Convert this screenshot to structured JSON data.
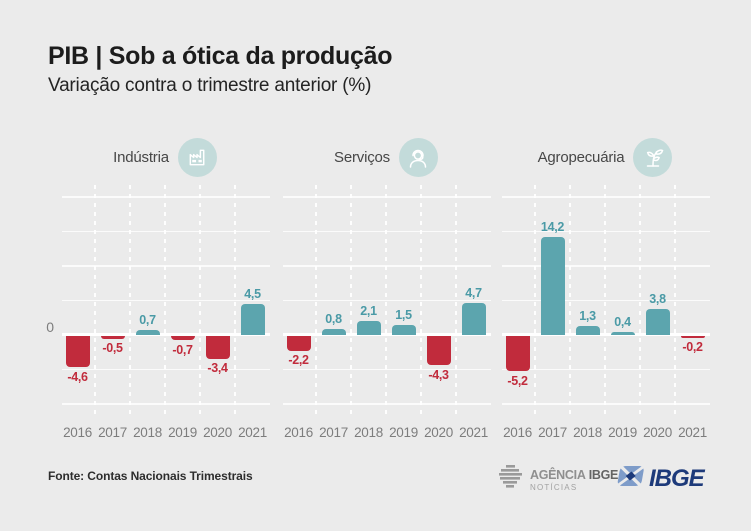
{
  "header": {
    "title": "PIB | Sob a ótica da produção",
    "subtitle": "Variação contra o trimestre anterior (%)"
  },
  "axis": {
    "zero_label": "0"
  },
  "colors": {
    "background": "#ebebeb",
    "positive_bar": "#5ca5ae",
    "negative_bar": "#c12b3c",
    "positive_label": "#4a9aa6",
    "negative_label": "#c12b3c",
    "icon_circle": "#c3dbda",
    "ibge_navy": "#1d3a7a",
    "ibge_lightblue": "#7e9cc9"
  },
  "chart_data": [
    {
      "type": "bar",
      "title": "Indústria",
      "slug": "industria",
      "icon": "factory-icon",
      "categories": [
        "2016",
        "2017",
        "2018",
        "2019",
        "2020",
        "2021"
      ],
      "values": [
        -4.6,
        -0.5,
        0.7,
        -0.7,
        -3.4,
        4.5
      ],
      "labels": [
        "-4,6",
        "-0,5",
        "0,7",
        "-0,7",
        "-3,4",
        "4,5"
      ],
      "ylim": [
        -12,
        21.5
      ],
      "gridline_step": 5,
      "grid": "on",
      "legend": "none"
    },
    {
      "type": "bar",
      "title": "Serviços",
      "slug": "servicos",
      "icon": "headset-person-icon",
      "categories": [
        "2016",
        "2017",
        "2018",
        "2019",
        "2020",
        "2021"
      ],
      "values": [
        -2.2,
        0.8,
        2.1,
        1.5,
        -4.3,
        4.7
      ],
      "labels": [
        "-2,2",
        "0,8",
        "2,1",
        "1,5",
        "-4,3",
        "4,7"
      ],
      "ylim": [
        -12,
        21.5
      ],
      "gridline_step": 5,
      "grid": "on",
      "legend": "none"
    },
    {
      "type": "bar",
      "title": "Agropecuária",
      "slug": "agropecuaria",
      "icon": "plant-icon",
      "categories": [
        "2016",
        "2017",
        "2018",
        "2019",
        "2020",
        "2021"
      ],
      "values": [
        -5.2,
        14.2,
        1.3,
        0.4,
        3.8,
        -0.2
      ],
      "labels": [
        "-5,2",
        "14,2",
        "1,3",
        "0,4",
        "3,8",
        "-0,2"
      ],
      "ylim": [
        -12,
        21.5
      ],
      "gridline_step": 5,
      "grid": "on",
      "legend": "none"
    }
  ],
  "footer": {
    "source": "Fonte: Contas Nacionais Trimestrais",
    "agencia_logo": {
      "line1_regular": "AGÊNCIA",
      "line1_bold": "IBGE",
      "line2": "NOTÍCIAS"
    },
    "ibge_logo": {
      "text": "IBGE"
    }
  }
}
